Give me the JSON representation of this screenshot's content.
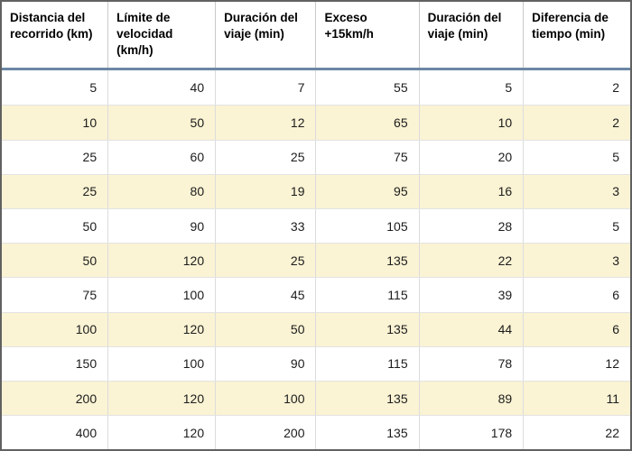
{
  "chart_data": {
    "type": "table",
    "title": "",
    "columns": [
      "Distancia del recorrido (km)",
      "Límite de velocidad (km/h)",
      "Duración del viaje (min)",
      "Exceso +15km/h",
      "Duración del viaje (min)",
      "Diferencia de tiempo (min)"
    ],
    "rows": [
      [
        5,
        40,
        7,
        55,
        5,
        2
      ],
      [
        10,
        50,
        12,
        65,
        10,
        2
      ],
      [
        25,
        60,
        25,
        75,
        20,
        5
      ],
      [
        25,
        80,
        19,
        95,
        16,
        3
      ],
      [
        50,
        90,
        33,
        105,
        28,
        5
      ],
      [
        50,
        120,
        25,
        135,
        22,
        3
      ],
      [
        75,
        100,
        45,
        115,
        39,
        6
      ],
      [
        100,
        120,
        50,
        135,
        44,
        6
      ],
      [
        150,
        100,
        90,
        115,
        78,
        12
      ],
      [
        200,
        120,
        100,
        135,
        89,
        11
      ],
      [
        400,
        120,
        200,
        135,
        178,
        22
      ]
    ],
    "striped_row_indices": [
      1,
      3,
      5,
      7,
      9
    ],
    "layout_hints": {
      "header_align": "left",
      "cell_align": "right",
      "grid": "on"
    },
    "colors": {
      "stripe_background": "#faf3d4",
      "header_rule": "#6d87a5",
      "outer_border": "#616161",
      "grid_line": "#dcdcdc",
      "header_divider": "#c9c9c9",
      "text": "#1c1c1c"
    }
  }
}
